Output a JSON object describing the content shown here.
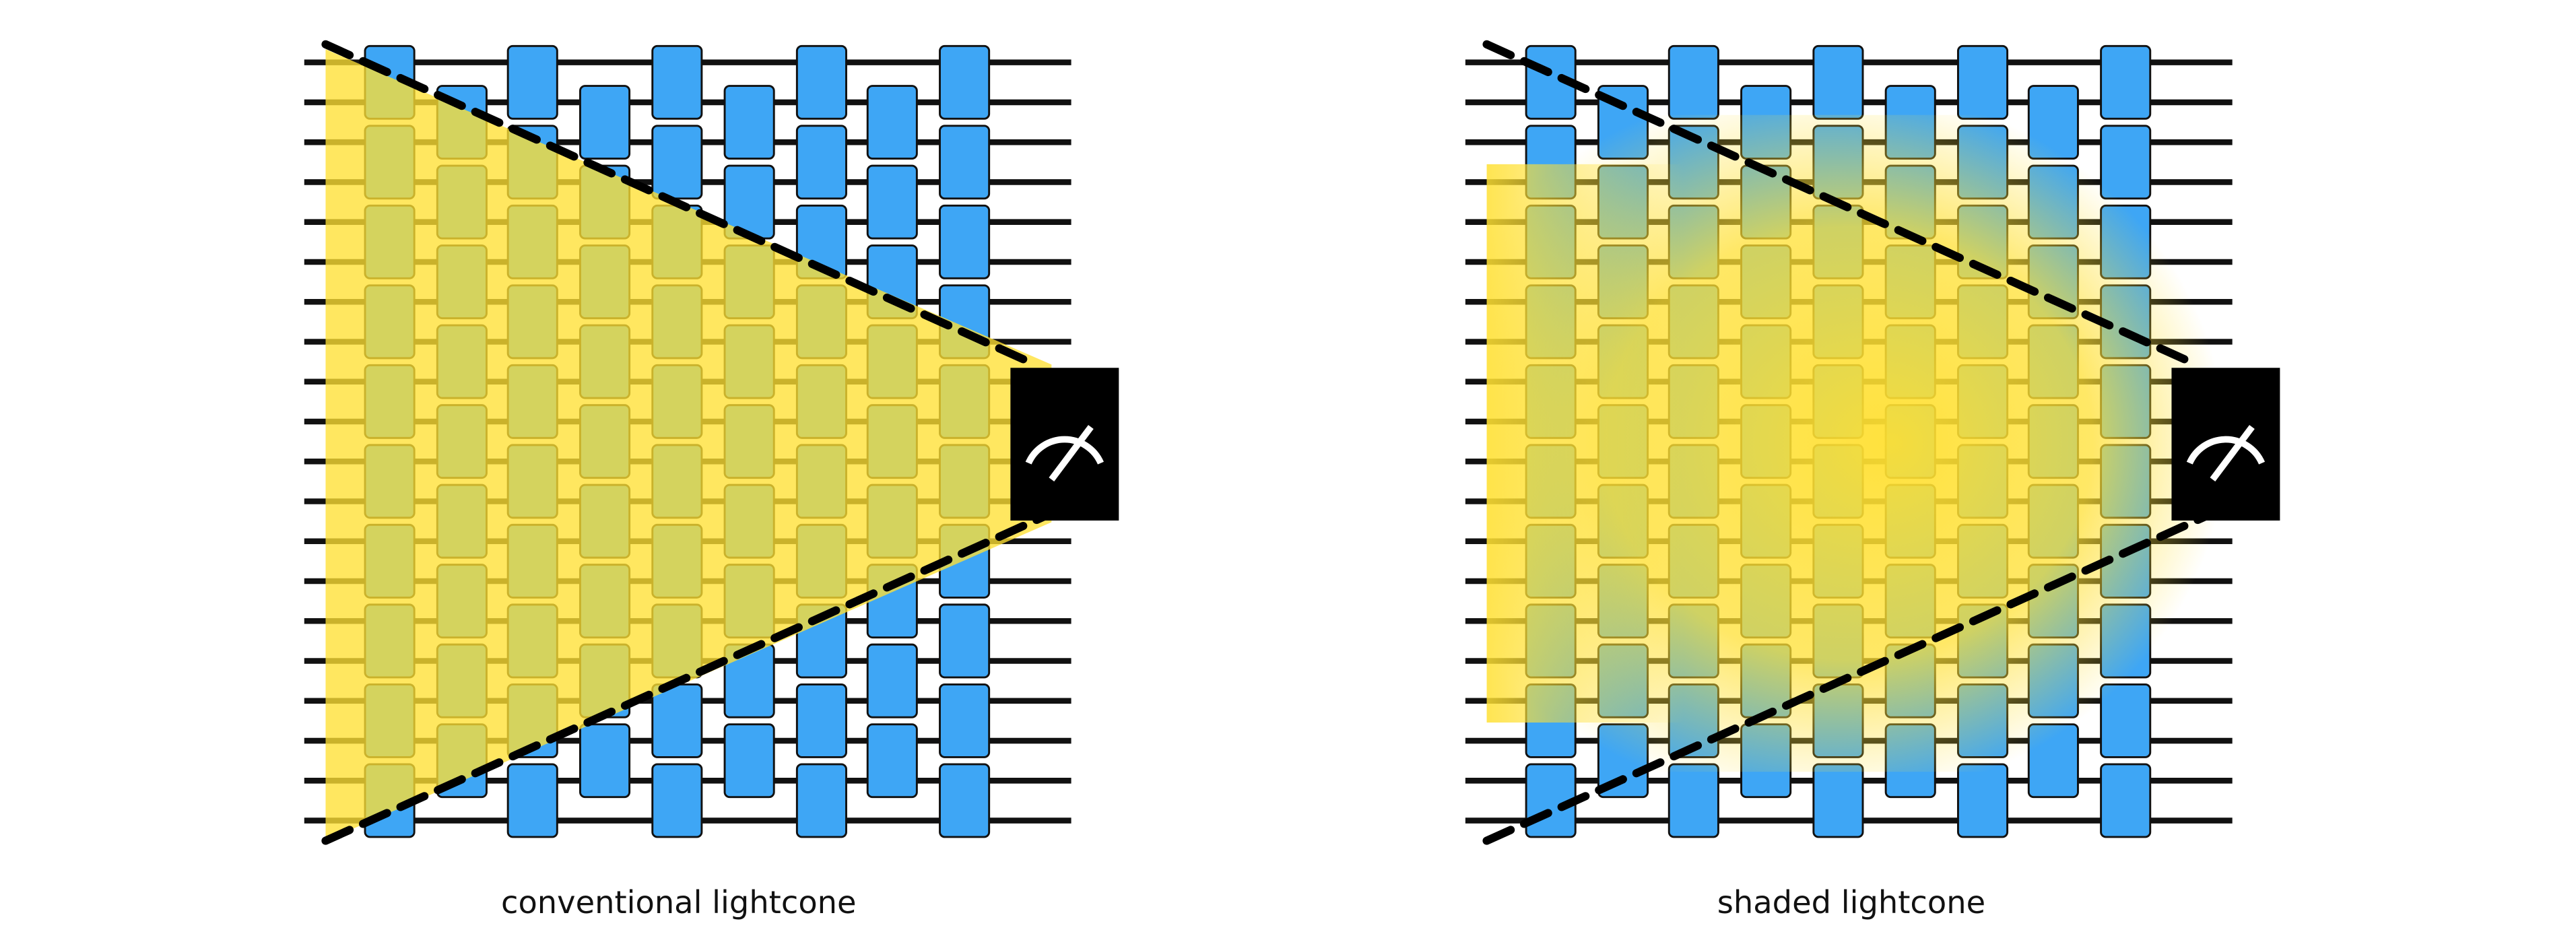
{
  "panels": [
    {
      "caption": "conventional lightcone"
    },
    {
      "caption": "shaded lightcone"
    }
  ]
}
